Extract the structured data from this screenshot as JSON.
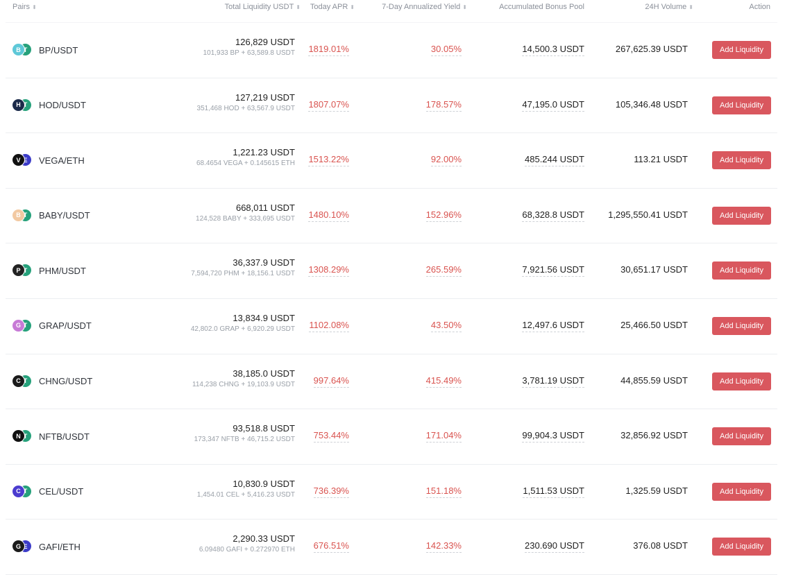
{
  "columns": {
    "pairs": "Pairs",
    "total_liquidity": "Total Liquidity USDT",
    "today_apr": "Today APR",
    "seven_day_yield": "7-Day Annualized Yield",
    "bonus_pool": "Accumulated Bonus Pool",
    "volume_24h": "24H Volume",
    "action": "Action"
  },
  "sort_glyph": "⬍",
  "button_label": "Add Liquidity",
  "colors": {
    "accent": "#d9575e",
    "positive_rate": "#d9534f"
  },
  "rows": [
    {
      "pair": "BP/USDT",
      "liquidity": "126,829 USDT",
      "liquidity_detail": "101,933 BP + 63,589.8 USDT",
      "apr": "1819.01%",
      "yield7d": "30.05%",
      "bonus": "14,500.3 USDT",
      "volume": "267,625.39 USDT",
      "icon_a": "bp-token-icon",
      "icon_b": "usdt-token-icon"
    },
    {
      "pair": "HOD/USDT",
      "liquidity": "127,219 USDT",
      "liquidity_detail": "351,468 HOD + 63,567.9 USDT",
      "apr": "1807.07%",
      "yield7d": "178.57%",
      "bonus": "47,195.0 USDT",
      "volume": "105,346.48 USDT",
      "icon_a": "hod-token-icon",
      "icon_b": "usdt-token-icon"
    },
    {
      "pair": "VEGA/ETH",
      "liquidity": "1,221.23 USDT",
      "liquidity_detail": "68.4654 VEGA + 0.145615 ETH",
      "apr": "1513.22%",
      "yield7d": "92.00%",
      "bonus": "485.244 USDT",
      "volume": "113.21 USDT",
      "icon_a": "vega-token-icon",
      "icon_b": "eth-token-icon"
    },
    {
      "pair": "BABY/USDT",
      "liquidity": "668,011 USDT",
      "liquidity_detail": "124,528 BABY + 333,695 USDT",
      "apr": "1480.10%",
      "yield7d": "152.96%",
      "bonus": "68,328.8 USDT",
      "volume": "1,295,550.41 USDT",
      "icon_a": "baby-token-icon",
      "icon_b": "usdt-token-icon"
    },
    {
      "pair": "PHM/USDT",
      "liquidity": "36,337.9 USDT",
      "liquidity_detail": "7,594,720 PHM + 18,156.1 USDT",
      "apr": "1308.29%",
      "yield7d": "265.59%",
      "bonus": "7,921.56 USDT",
      "volume": "30,651.17 USDT",
      "icon_a": "phm-token-icon",
      "icon_b": "usdt-token-icon"
    },
    {
      "pair": "GRAP/USDT",
      "liquidity": "13,834.9 USDT",
      "liquidity_detail": "42,802.0 GRAP + 6,920.29 USDT",
      "apr": "1102.08%",
      "yield7d": "43.50%",
      "bonus": "12,497.6 USDT",
      "volume": "25,466.50 USDT",
      "icon_a": "grap-token-icon",
      "icon_b": "usdt-token-icon"
    },
    {
      "pair": "CHNG/USDT",
      "liquidity": "38,185.0 USDT",
      "liquidity_detail": "114,238 CHNG + 19,103.9 USDT",
      "apr": "997.64%",
      "yield7d": "415.49%",
      "bonus": "3,781.19 USDT",
      "volume": "44,855.59 USDT",
      "icon_a": "chng-token-icon",
      "icon_b": "usdt-token-icon"
    },
    {
      "pair": "NFTB/USDT",
      "liquidity": "93,518.8 USDT",
      "liquidity_detail": "173,347 NFTB + 46,715.2 USDT",
      "apr": "753.44%",
      "yield7d": "171.04%",
      "bonus": "99,904.3 USDT",
      "volume": "32,856.92 USDT",
      "icon_a": "nftb-token-icon",
      "icon_b": "usdt-token-icon"
    },
    {
      "pair": "CEL/USDT",
      "liquidity": "10,830.9 USDT",
      "liquidity_detail": "1,454.01 CEL + 5,416.23 USDT",
      "apr": "736.39%",
      "yield7d": "151.18%",
      "bonus": "1,511.53 USDT",
      "volume": "1,325.59 USDT",
      "icon_a": "cel-token-icon",
      "icon_b": "usdt-token-icon"
    },
    {
      "pair": "GAFI/ETH",
      "liquidity": "2,290.33 USDT",
      "liquidity_detail": "6.09480 GAFI + 0.272970 ETH",
      "apr": "676.51%",
      "yield7d": "142.33%",
      "bonus": "230.690 USDT",
      "volume": "376.08 USDT",
      "icon_a": "gafi-token-icon",
      "icon_b": "eth-token-icon"
    }
  ]
}
